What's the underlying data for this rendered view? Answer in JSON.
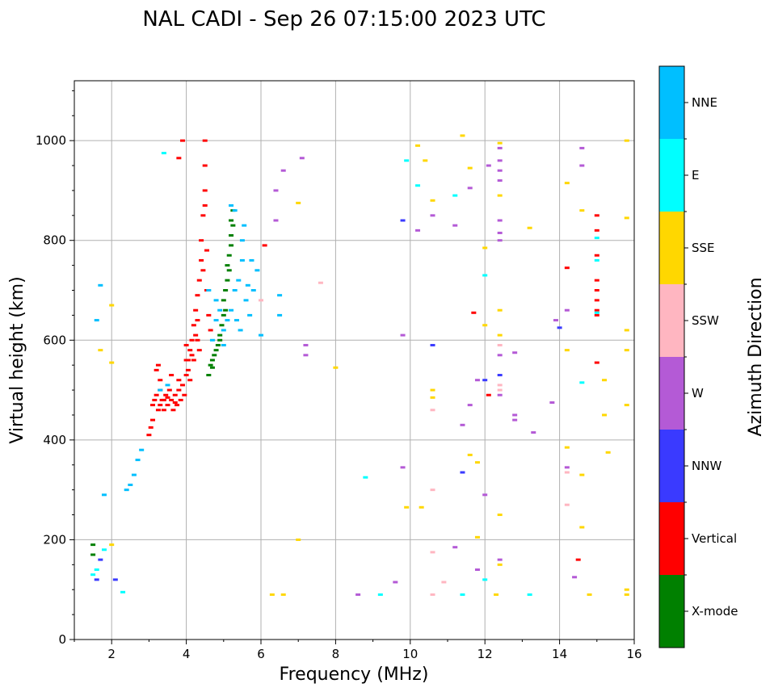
{
  "chart_data": {
    "type": "scatter",
    "title": "NAL CADI - Sep 26 07:15:00 2023 UTC",
    "xlabel": "Frequency (MHz)",
    "ylabel": "Virtual height (km)",
    "xlim": [
      1,
      16
    ],
    "ylim": [
      0,
      1120
    ],
    "xticks": [
      2,
      4,
      6,
      8,
      10,
      12,
      14,
      16
    ],
    "xtick_labels": [
      "2",
      "4",
      "6",
      "8",
      "10",
      "12",
      "14",
      "16"
    ],
    "yticks": [
      0,
      200,
      400,
      600,
      800,
      1000
    ],
    "ytick_labels": [
      "0",
      "200",
      "400",
      "600",
      "800",
      "1000"
    ],
    "grid": true,
    "colorbar": {
      "title": "Azimuth Direction",
      "categories": [
        {
          "label": "X-mode",
          "color": "#008000"
        },
        {
          "label": "Vertical",
          "color": "#ff0000"
        },
        {
          "label": "NNW",
          "color": "#3a3aff"
        },
        {
          "label": "W",
          "color": "#b45ad6"
        },
        {
          "label": "SSW",
          "color": "#ffb6c1"
        },
        {
          "label": "SSE",
          "color": "#ffd700"
        },
        {
          "label": "E",
          "color": "#00ffff"
        },
        {
          "label": "NNE",
          "color": "#00bfff"
        }
      ]
    },
    "series": [
      {
        "name": "Vertical",
        "color": "#ff0000",
        "points": [
          [
            3.0,
            410
          ],
          [
            3.05,
            425
          ],
          [
            3.1,
            440
          ],
          [
            3.1,
            470
          ],
          [
            3.15,
            480
          ],
          [
            3.2,
            490
          ],
          [
            3.25,
            460
          ],
          [
            3.3,
            500
          ],
          [
            3.3,
            470
          ],
          [
            3.35,
            480
          ],
          [
            3.4,
            460
          ],
          [
            3.45,
            490
          ],
          [
            3.5,
            470
          ],
          [
            3.55,
            500
          ],
          [
            3.6,
            480
          ],
          [
            3.65,
            460
          ],
          [
            3.7,
            490
          ],
          [
            3.75,
            470
          ],
          [
            3.8,
            500
          ],
          [
            3.85,
            480
          ],
          [
            3.9,
            510
          ],
          [
            3.95,
            490
          ],
          [
            4.0,
            530
          ],
          [
            4.0,
            560
          ],
          [
            4.05,
            540
          ],
          [
            4.1,
            580
          ],
          [
            4.1,
            520
          ],
          [
            4.15,
            600
          ],
          [
            4.2,
            560
          ],
          [
            4.2,
            630
          ],
          [
            4.25,
            660
          ],
          [
            4.3,
            600
          ],
          [
            4.3,
            690
          ],
          [
            4.35,
            720
          ],
          [
            4.35,
            580
          ],
          [
            4.4,
            760
          ],
          [
            4.4,
            800
          ],
          [
            4.45,
            850
          ],
          [
            4.5,
            900
          ],
          [
            4.5,
            950
          ],
          [
            4.5,
            1000
          ],
          [
            4.55,
            700
          ],
          [
            4.6,
            650
          ],
          [
            4.65,
            620
          ],
          [
            3.2,
            540
          ],
          [
            3.25,
            550
          ],
          [
            3.3,
            520
          ],
          [
            3.6,
            530
          ],
          [
            3.8,
            520
          ],
          [
            4.0,
            590
          ],
          [
            3.4,
            480
          ],
          [
            3.5,
            485
          ],
          [
            3.7,
            475
          ],
          [
            4.25,
            610
          ],
          [
            4.3,
            640
          ],
          [
            4.45,
            740
          ],
          [
            4.5,
            870
          ],
          [
            4.55,
            780
          ],
          [
            4.05,
            560
          ],
          [
            4.15,
            570
          ],
          [
            15.0,
            850
          ],
          [
            15.0,
            820
          ],
          [
            15.0,
            770
          ],
          [
            15.0,
            720
          ],
          [
            15.0,
            700
          ],
          [
            15.0,
            680
          ],
          [
            15.0,
            660
          ],
          [
            15.0,
            650
          ],
          [
            15.0,
            555
          ],
          [
            14.2,
            745
          ],
          [
            11.7,
            655
          ],
          [
            12.1,
            490
          ],
          [
            6.1,
            790
          ],
          [
            3.8,
            965
          ],
          [
            3.9,
            1000
          ],
          [
            14.5,
            160
          ]
        ]
      },
      {
        "name": "X-mode",
        "color": "#008000",
        "points": [
          [
            4.6,
            530
          ],
          [
            4.65,
            550
          ],
          [
            4.7,
            560
          ],
          [
            4.75,
            570
          ],
          [
            4.8,
            580
          ],
          [
            4.85,
            590
          ],
          [
            4.9,
            610
          ],
          [
            4.95,
            630
          ],
          [
            5.0,
            650
          ],
          [
            5.0,
            680
          ],
          [
            5.05,
            700
          ],
          [
            5.1,
            720
          ],
          [
            5.1,
            750
          ],
          [
            5.15,
            770
          ],
          [
            5.2,
            790
          ],
          [
            5.2,
            810
          ],
          [
            5.25,
            830
          ],
          [
            5.25,
            860
          ],
          [
            4.7,
            545
          ],
          [
            4.9,
            600
          ],
          [
            5.05,
            660
          ],
          [
            5.15,
            740
          ],
          [
            5.2,
            840
          ],
          [
            1.5,
            190
          ],
          [
            1.5,
            170
          ]
        ]
      },
      {
        "name": "NNE",
        "color": "#00bfff",
        "points": [
          [
            4.7,
            600
          ],
          [
            4.8,
            640
          ],
          [
            4.9,
            660
          ],
          [
            5.0,
            620
          ],
          [
            5.1,
            640
          ],
          [
            5.2,
            660
          ],
          [
            5.3,
            700
          ],
          [
            5.4,
            720
          ],
          [
            5.5,
            760
          ],
          [
            5.5,
            800
          ],
          [
            5.6,
            680
          ],
          [
            5.7,
            650
          ],
          [
            5.8,
            700
          ],
          [
            5.9,
            740
          ],
          [
            6.0,
            610
          ],
          [
            5.3,
            860
          ],
          [
            5.2,
            870
          ],
          [
            5.0,
            590
          ],
          [
            4.8,
            680
          ],
          [
            4.6,
            700
          ],
          [
            5.35,
            640
          ],
          [
            5.45,
            620
          ],
          [
            5.65,
            710
          ],
          [
            5.75,
            760
          ],
          [
            5.55,
            830
          ],
          [
            6.5,
            690
          ],
          [
            6.5,
            650
          ],
          [
            2.8,
            380
          ],
          [
            2.7,
            360
          ],
          [
            2.6,
            330
          ],
          [
            2.5,
            310
          ],
          [
            2.4,
            300
          ],
          [
            1.6,
            640
          ],
          [
            1.7,
            710
          ],
          [
            1.8,
            290
          ],
          [
            3.3,
            500
          ],
          [
            3.5,
            510
          ]
        ]
      },
      {
        "name": "SSE",
        "color": "#ffd700",
        "points": [
          [
            7.0,
            875
          ],
          [
            7.0,
            200
          ],
          [
            8.0,
            545
          ],
          [
            10.2,
            990
          ],
          [
            10.4,
            960
          ],
          [
            10.6,
            880
          ],
          [
            11.4,
            1010
          ],
          [
            11.6,
            945
          ],
          [
            12.0,
            785
          ],
          [
            12.0,
            630
          ],
          [
            12.4,
            995
          ],
          [
            12.4,
            890
          ],
          [
            12.4,
            660
          ],
          [
            12.4,
            610
          ],
          [
            12.4,
            250
          ],
          [
            12.4,
            150
          ],
          [
            13.2,
            825
          ],
          [
            14.2,
            915
          ],
          [
            14.2,
            580
          ],
          [
            14.2,
            385
          ],
          [
            14.6,
            860
          ],
          [
            14.6,
            330
          ],
          [
            14.6,
            225
          ],
          [
            15.2,
            520
          ],
          [
            15.2,
            450
          ],
          [
            15.3,
            375
          ],
          [
            15.8,
            1000
          ],
          [
            15.8,
            845
          ],
          [
            15.8,
            620
          ],
          [
            15.8,
            580
          ],
          [
            15.8,
            470
          ],
          [
            15.8,
            100
          ],
          [
            15.8,
            90
          ],
          [
            9.9,
            265
          ],
          [
            10.3,
            265
          ],
          [
            10.6,
            485
          ],
          [
            10.6,
            500
          ],
          [
            11.6,
            370
          ],
          [
            11.8,
            355
          ],
          [
            11.8,
            205
          ],
          [
            6.3,
            90
          ],
          [
            6.6,
            90
          ],
          [
            12.3,
            90
          ],
          [
            14.8,
            90
          ],
          [
            2.0,
            555
          ],
          [
            2.0,
            670
          ],
          [
            2.0,
            190
          ],
          [
            1.7,
            580
          ]
        ]
      },
      {
        "name": "W",
        "color": "#b45ad6",
        "points": [
          [
            6.4,
            900
          ],
          [
            6.4,
            840
          ],
          [
            6.6,
            940
          ],
          [
            7.1,
            965
          ],
          [
            10.2,
            820
          ],
          [
            10.6,
            850
          ],
          [
            11.2,
            830
          ],
          [
            11.6,
            905
          ],
          [
            11.8,
            520
          ],
          [
            12.1,
            950
          ],
          [
            12.4,
            985
          ],
          [
            12.4,
            960
          ],
          [
            12.4,
            940
          ],
          [
            12.4,
            920
          ],
          [
            12.4,
            840
          ],
          [
            12.4,
            815
          ],
          [
            12.4,
            800
          ],
          [
            12.4,
            570
          ],
          [
            12.4,
            490
          ],
          [
            12.4,
            160
          ],
          [
            12.8,
            575
          ],
          [
            12.8,
            450
          ],
          [
            12.8,
            440
          ],
          [
            13.3,
            415
          ],
          [
            13.8,
            475
          ],
          [
            13.9,
            640
          ],
          [
            14.2,
            660
          ],
          [
            14.2,
            345
          ],
          [
            14.4,
            125
          ],
          [
            14.6,
            985
          ],
          [
            14.6,
            950
          ],
          [
            9.8,
            610
          ],
          [
            9.8,
            345
          ],
          [
            9.6,
            115
          ],
          [
            11.4,
            430
          ],
          [
            11.6,
            470
          ],
          [
            11.8,
            140
          ],
          [
            12.0,
            290
          ],
          [
            8.6,
            90
          ],
          [
            11.2,
            185
          ],
          [
            7.2,
            590
          ],
          [
            7.2,
            570
          ]
        ]
      },
      {
        "name": "SSW",
        "color": "#ffb6c1",
        "points": [
          [
            7.6,
            715
          ],
          [
            10.6,
            300
          ],
          [
            10.6,
            175
          ],
          [
            10.6,
            460
          ],
          [
            10.6,
            90
          ],
          [
            10.9,
            115
          ],
          [
            12.4,
            510
          ],
          [
            12.4,
            500
          ],
          [
            12.4,
            590
          ],
          [
            14.2,
            270
          ],
          [
            14.2,
            335
          ],
          [
            6.0,
            680
          ]
        ]
      },
      {
        "name": "NNW",
        "color": "#3a3aff",
        "points": [
          [
            10.6,
            590
          ],
          [
            11.4,
            335
          ],
          [
            12.4,
            530
          ],
          [
            14.0,
            625
          ],
          [
            2.1,
            120
          ],
          [
            1.6,
            120
          ],
          [
            1.7,
            160
          ],
          [
            9.8,
            840
          ],
          [
            12.0,
            520
          ]
        ]
      },
      {
        "name": "E",
        "color": "#00ffff",
        "points": [
          [
            8.8,
            325
          ],
          [
            9.9,
            960
          ],
          [
            10.2,
            910
          ],
          [
            11.2,
            890
          ],
          [
            12.0,
            730
          ],
          [
            12.0,
            120
          ],
          [
            13.2,
            90
          ],
          [
            14.6,
            515
          ],
          [
            15.0,
            805
          ],
          [
            15.0,
            655
          ],
          [
            15.0,
            760
          ],
          [
            9.2,
            90
          ],
          [
            11.4,
            90
          ],
          [
            1.6,
            140
          ],
          [
            1.5,
            130
          ],
          [
            3.4,
            975
          ],
          [
            1.8,
            180
          ],
          [
            2.3,
            95
          ]
        ]
      }
    ]
  }
}
